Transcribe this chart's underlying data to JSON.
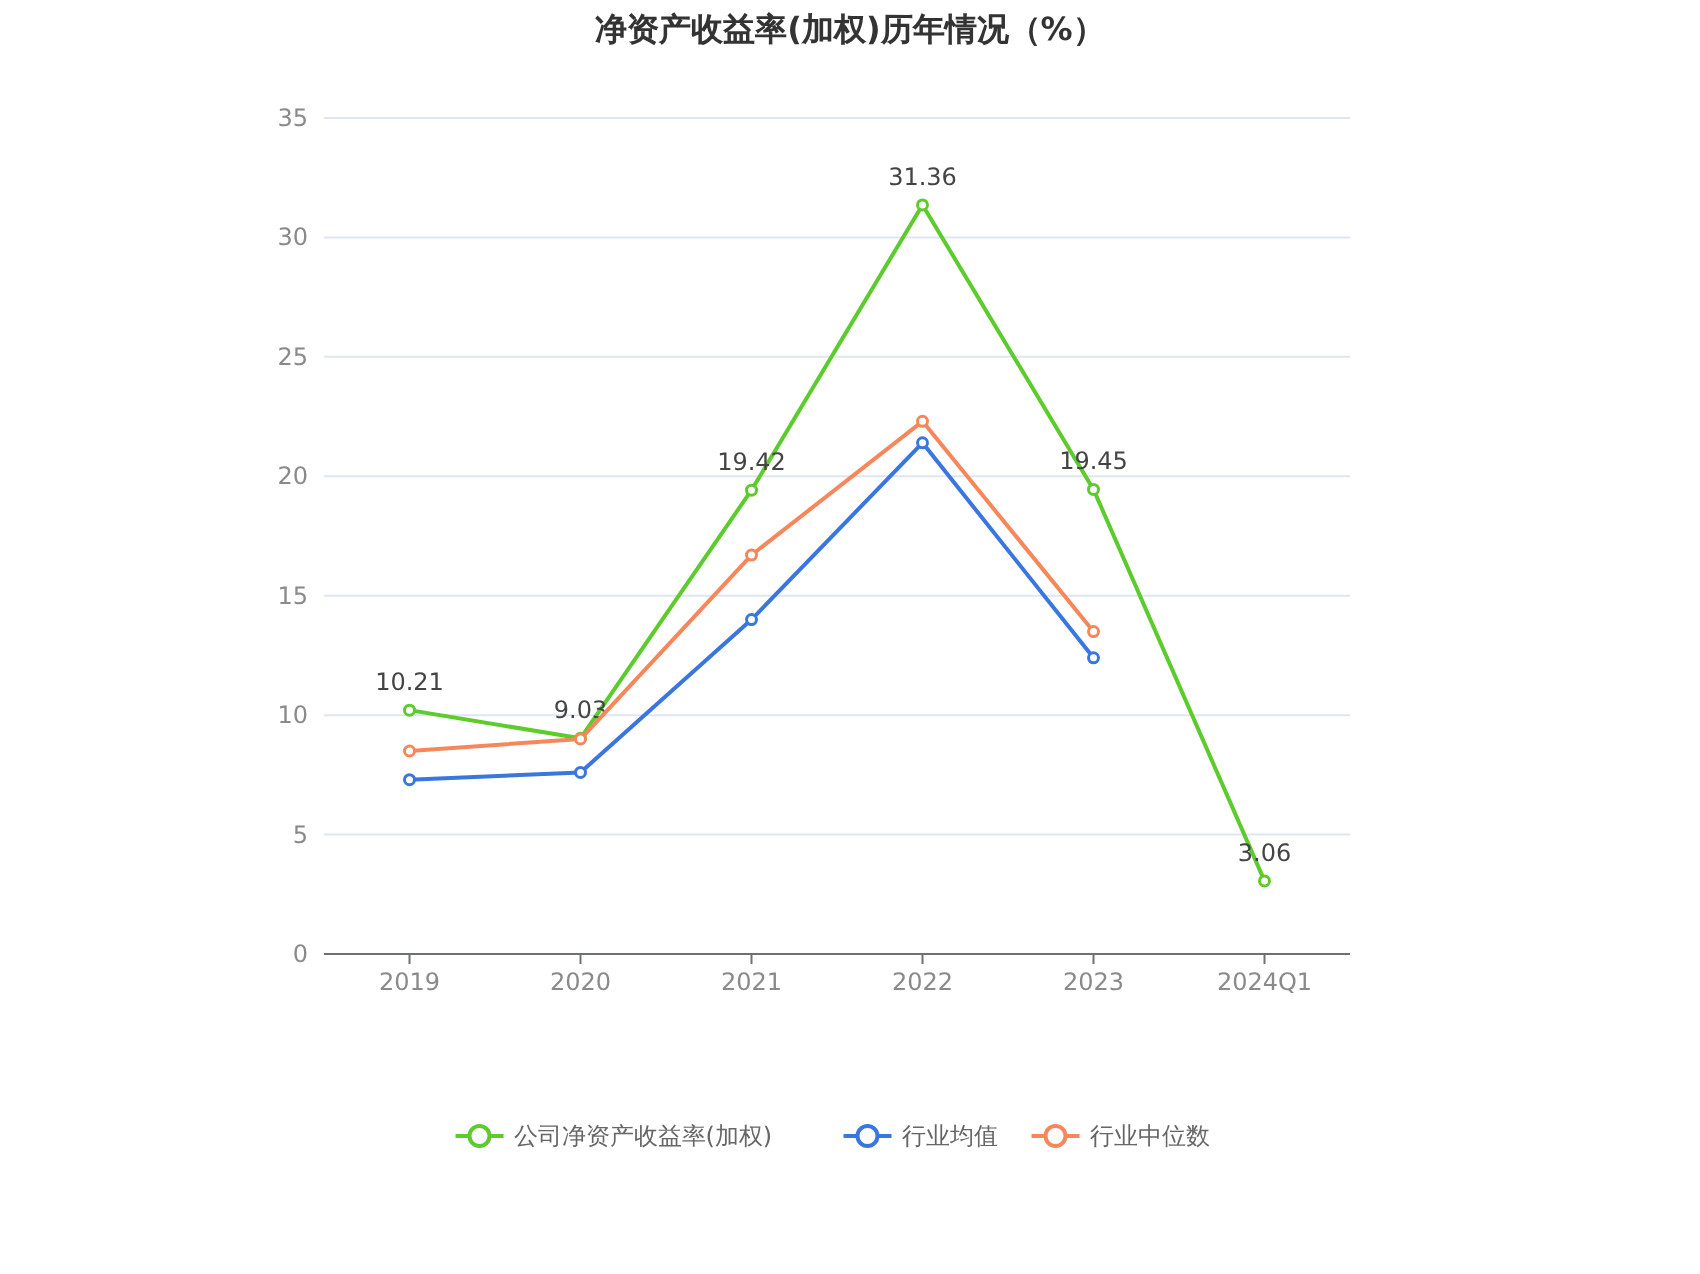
{
  "chart_data": {
    "type": "line",
    "title": "净资产收益率(加权)历年情况（%）",
    "categories": [
      "2019",
      "2020",
      "2021",
      "2022",
      "2023",
      "2024Q1"
    ],
    "series": [
      {
        "name": "公司净资产收益率(加权)",
        "color": "#5ccb2c",
        "values": [
          10.21,
          9.03,
          19.42,
          31.36,
          19.45,
          3.06
        ],
        "value_labels": [
          "10.21",
          "9.03",
          "19.42",
          "31.36",
          "19.45",
          "3.06"
        ]
      },
      {
        "name": "行业均值",
        "color": "#3a76e0",
        "values": [
          7.3,
          7.6,
          14.0,
          21.4,
          12.4,
          null
        ]
      },
      {
        "name": "行业中位数",
        "color": "#f6875a",
        "values": [
          8.5,
          9.0,
          16.7,
          22.3,
          13.5,
          null
        ]
      }
    ],
    "ylim": [
      0,
      35
    ],
    "yticks": [
      0,
      5,
      10,
      15,
      20,
      25,
      30,
      35
    ],
    "grid": "y",
    "legend": "bottom",
    "marker": "circle",
    "line_style": "solid"
  }
}
